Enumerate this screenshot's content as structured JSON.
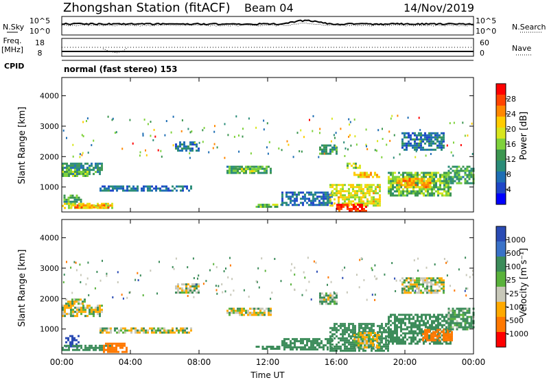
{
  "header": {
    "title": "Zhongshan Station (fitACF)",
    "beam": "Beam 04",
    "date": "14/Nov/2019"
  },
  "noise_panel": {
    "left_label": "N.Sky",
    "right_label": "N.Search",
    "left_ticks": [
      "10^5",
      "10^0"
    ],
    "right_ticks": [
      "10^5",
      "10^0"
    ]
  },
  "freq_panel": {
    "left_label_1": "Freq.",
    "left_label_2": "[MHz]",
    "right_label": "Nave",
    "left_ticks": [
      "18",
      "8"
    ],
    "right_ticks": [
      "60",
      "0"
    ]
  },
  "cpid": {
    "label": "CPID",
    "value": "normal (fast stereo) 153"
  },
  "chart_data": [
    {
      "type": "heatmap",
      "parameter": "Power",
      "ylabel": "Slant Range [km]",
      "ylim": [
        180,
        4600
      ],
      "yticks": [
        "4000",
        "3000",
        "2000",
        "1000"
      ],
      "colorbar_label": "Power [dB]",
      "colorbar_ticks": [
        "28",
        "24",
        "20",
        "16",
        "12",
        "8",
        "4"
      ],
      "colorbar_colors": [
        "#ff0000",
        "#ff4400",
        "#ff8800",
        "#ffcc00",
        "#d8e61e",
        "#7fd23c",
        "#3c9650",
        "#2a8c78",
        "#1e6eb4",
        "#1e46c8",
        "#0000ff"
      ],
      "colorbar_range": [
        0,
        30
      ],
      "regions": [
        {
          "t0": 0.0,
          "t1": 2.4,
          "r0": 1400,
          "r1": 1800,
          "power": 10
        },
        {
          "t0": 0.0,
          "t1": 1.5,
          "r0": 1350,
          "r1": 1600,
          "power": 14
        },
        {
          "t0": 0.1,
          "t1": 1.3,
          "r0": 500,
          "r1": 750,
          "power": 12
        },
        {
          "t0": 0.0,
          "t1": 3.0,
          "r0": 300,
          "r1": 480,
          "power": 18
        },
        {
          "t0": 0.5,
          "t1": 2.8,
          "r0": 350,
          "r1": 430,
          "power": 22
        },
        {
          "t0": 2.2,
          "t1": 7.5,
          "r0": 850,
          "r1": 1050,
          "power": 7
        },
        {
          "t0": 6.6,
          "t1": 8.0,
          "r0": 2200,
          "r1": 2500,
          "power": 8
        },
        {
          "t0": 9.6,
          "t1": 12.2,
          "r0": 1450,
          "r1": 1700,
          "power": 12
        },
        {
          "t0": 10.2,
          "t1": 11.5,
          "r0": 1520,
          "r1": 1620,
          "power": 16
        },
        {
          "t0": 11.3,
          "t1": 12.8,
          "r0": 330,
          "r1": 450,
          "power": 14
        },
        {
          "t0": 12.8,
          "t1": 15.8,
          "r0": 400,
          "r1": 850,
          "power": 7
        },
        {
          "t0": 15.0,
          "t1": 16.0,
          "r0": 2100,
          "r1": 2400,
          "power": 10
        },
        {
          "t0": 15.6,
          "t1": 18.5,
          "r0": 400,
          "r1": 1100,
          "power": 18
        },
        {
          "t0": 16.0,
          "t1": 17.8,
          "r0": 180,
          "r1": 450,
          "power": 28
        },
        {
          "t0": 17.0,
          "t1": 18.5,
          "r0": 1300,
          "r1": 1500,
          "power": 20
        },
        {
          "t0": 16.6,
          "t1": 17.4,
          "r0": 1600,
          "r1": 1800,
          "power": 16
        },
        {
          "t0": 19.0,
          "t1": 22.6,
          "r0": 700,
          "r1": 1500,
          "power": 14
        },
        {
          "t0": 19.5,
          "t1": 21.5,
          "r0": 1000,
          "r1": 1300,
          "power": 22
        },
        {
          "t0": 19.8,
          "t1": 22.3,
          "r0": 2200,
          "r1": 2800,
          "power": 8
        },
        {
          "t0": 22.5,
          "t1": 24.0,
          "r0": 1100,
          "r1": 1700,
          "power": 12
        }
      ]
    },
    {
      "type": "heatmap",
      "parameter": "Velocity",
      "ylabel": "Slant Range [km]",
      "xlabel": "Time UT",
      "ylim": [
        180,
        4600
      ],
      "yticks": [
        "4000",
        "3000",
        "2000",
        "1000"
      ],
      "xticks": [
        "00:00",
        "04:00",
        "08:00",
        "12:00",
        "16:00",
        "20:00",
        "00:00"
      ],
      "x_range_hours": [
        0,
        24
      ],
      "colorbar_label": "Velocity [m s⁻¹]",
      "colorbar_ticks": [
        "1000",
        "500",
        "100",
        "25",
        "-25",
        "-100",
        "-500",
        "-1000"
      ],
      "colorbar_colors": [
        "#2a4bb4",
        "#3a72c8",
        "#3c8c5a",
        "#5ab23c",
        "#c8c8b9",
        "#ffaa00",
        "#ff7800",
        "#ff0000"
      ],
      "regions": [
        {
          "t0": 0.0,
          "t1": 2.4,
          "r0": 1400,
          "r1": 1800,
          "velocity": 0
        },
        {
          "t0": 0.2,
          "t1": 1.4,
          "r0": 1800,
          "r1": 2000,
          "velocity": 0
        },
        {
          "t0": 0.2,
          "t1": 1.0,
          "r0": 400,
          "r1": 800,
          "velocity": 800
        },
        {
          "t0": 0.0,
          "t1": 3.0,
          "r0": 300,
          "r1": 480,
          "velocity": 200
        },
        {
          "t0": 2.4,
          "t1": 3.8,
          "r0": 250,
          "r1": 550,
          "velocity": -300
        },
        {
          "t0": 2.2,
          "t1": 7.5,
          "r0": 850,
          "r1": 1050,
          "velocity": 0
        },
        {
          "t0": 6.6,
          "t1": 8.0,
          "r0": 2200,
          "r1": 2500,
          "velocity": 0
        },
        {
          "t0": 9.6,
          "t1": 12.2,
          "r0": 1450,
          "r1": 1700,
          "velocity": 0
        },
        {
          "t0": 11.3,
          "t1": 12.8,
          "r0": 330,
          "r1": 450,
          "velocity": 200
        },
        {
          "t0": 12.8,
          "t1": 15.8,
          "r0": 300,
          "r1": 700,
          "velocity": 200
        },
        {
          "t0": 15.0,
          "t1": 16.0,
          "r0": 1800,
          "r1": 2200,
          "velocity": 50
        },
        {
          "t0": 15.6,
          "t1": 19.0,
          "r0": 300,
          "r1": 1200,
          "velocity": 200
        },
        {
          "t0": 17.0,
          "t1": 18.5,
          "r0": 400,
          "r1": 900,
          "velocity": 0
        },
        {
          "t0": 19.0,
          "t1": 22.6,
          "r0": 500,
          "r1": 1500,
          "velocity": 200
        },
        {
          "t0": 21.0,
          "t1": 22.8,
          "r0": 600,
          "r1": 1000,
          "velocity": -200
        },
        {
          "t0": 19.8,
          "t1": 22.3,
          "r0": 2200,
          "r1": 2700,
          "velocity": 0
        },
        {
          "t0": 22.5,
          "t1": 24.0,
          "r0": 1000,
          "r1": 1700,
          "velocity": 100
        }
      ]
    }
  ]
}
